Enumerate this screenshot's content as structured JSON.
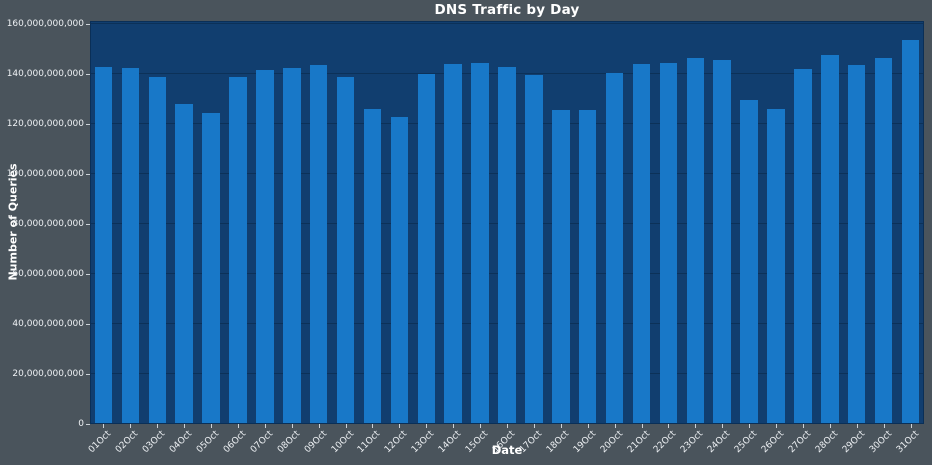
{
  "chart_data": {
    "type": "bar",
    "title": "DNS Traffic by Day",
    "xlabel": "Date",
    "ylabel": "Number of Queries",
    "categories": [
      "01Oct",
      "02Oct",
      "03Oct",
      "04Oct",
      "05Oct",
      "06Oct",
      "07Oct",
      "08Oct",
      "09Oct",
      "10Oct",
      "11Oct",
      "12Oct",
      "13Oct",
      "14Oct",
      "15Oct",
      "16Oct",
      "17Oct",
      "18Oct",
      "19Oct",
      "20Oct",
      "21Oct",
      "22Oct",
      "23Oct",
      "24Oct",
      "25Oct",
      "26Oct",
      "27Oct",
      "28Oct",
      "29Oct",
      "30Oct",
      "31Oct"
    ],
    "values": [
      143000000000,
      142500000000,
      139000000000,
      128000000000,
      124500000000,
      139000000000,
      141500000000,
      142500000000,
      143500000000,
      139000000000,
      126000000000,
      123000000000,
      140000000000,
      144000000000,
      144500000000,
      143000000000,
      139500000000,
      125500000000,
      125500000000,
      140500000000,
      144000000000,
      144500000000,
      146500000000,
      145500000000,
      129500000000,
      126000000000,
      142000000000,
      147500000000,
      143500000000,
      146500000000,
      153500000000
    ],
    "y_ticks": [
      0,
      20000000000,
      40000000000,
      60000000000,
      80000000000,
      100000000000,
      120000000000,
      140000000000,
      160000000000
    ],
    "y_tick_labels": [
      "0",
      "20,000,000,000",
      "40,000,000,000",
      "60,000,000,000",
      "80,000,000,000",
      "100,000,000,000",
      "120,000,000,000",
      "140,000,000,000",
      "160,000,000,000"
    ],
    "ylim": [
      0,
      161200000000
    ],
    "grid": true,
    "legend": false,
    "colors": {
      "figure_background": "#4a545c",
      "plot_background": "#113e6f",
      "bar": "#1878c8",
      "gridline": "#0c3158",
      "text": "#ffffff"
    }
  }
}
